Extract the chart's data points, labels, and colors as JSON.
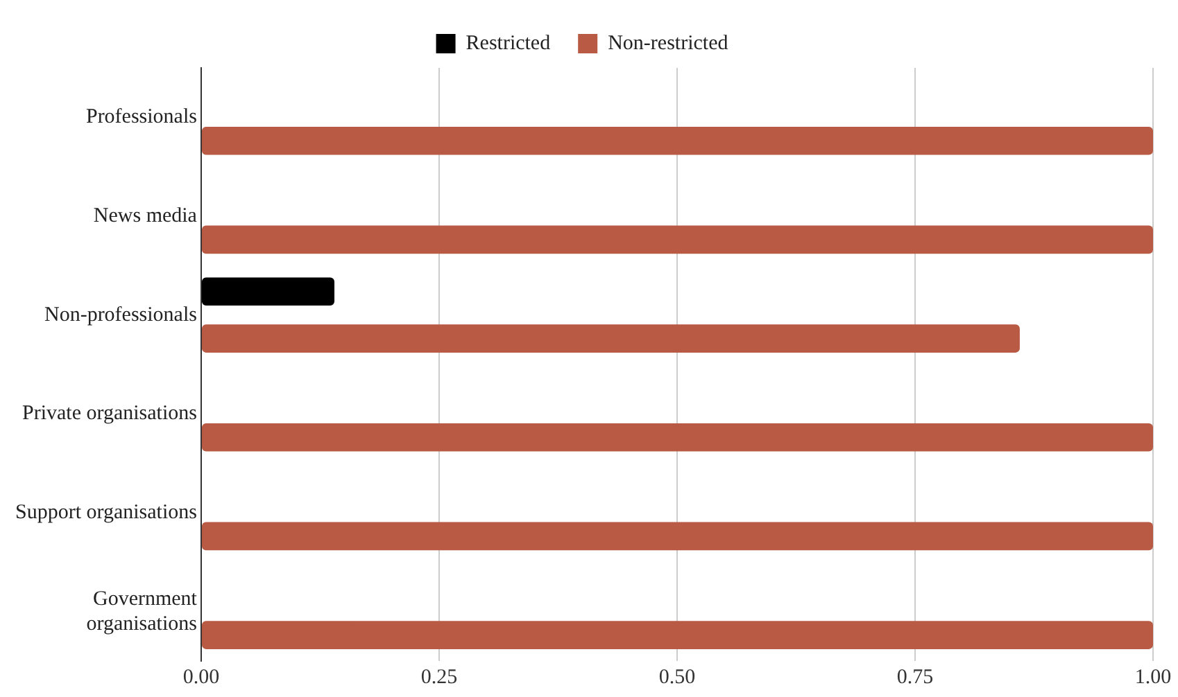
{
  "chart_data": {
    "type": "bar",
    "orientation": "horizontal",
    "categories": [
      "Professionals",
      "News media",
      "Non-professionals",
      "Private organisations",
      "Support organisations",
      "Government organisations"
    ],
    "series": [
      {
        "name": "Restricted",
        "color": "#000000",
        "values": [
          0,
          0,
          0.14,
          0,
          0,
          0
        ]
      },
      {
        "name": "Non-restricted",
        "color": "#b85a44",
        "values": [
          1,
          1,
          0.86,
          1,
          1,
          1
        ]
      }
    ],
    "xlim": [
      0,
      1
    ],
    "xticks": [
      {
        "value": 0,
        "label": "0.00"
      },
      {
        "value": 0.25,
        "label": "0.25"
      },
      {
        "value": 0.5,
        "label": "0.50"
      },
      {
        "value": 0.75,
        "label": "0.75"
      },
      {
        "value": 1,
        "label": "1.00"
      }
    ],
    "grid": "x",
    "legend": "top"
  }
}
